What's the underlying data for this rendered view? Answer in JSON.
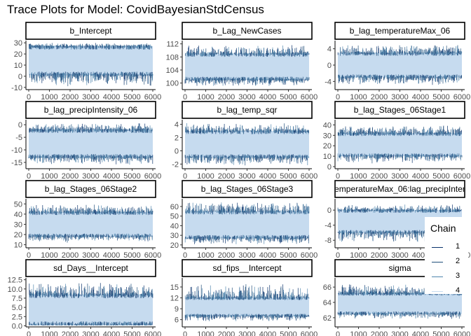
{
  "title": "Trace Plots for Model: CovidBayesianStdCensus",
  "legend": {
    "title": "Chain",
    "items": [
      {
        "label": "1",
        "color": "#08306b"
      },
      {
        "label": "2",
        "color": "#1f4e79"
      },
      {
        "label": "3",
        "color": "#4f85ad"
      },
      {
        "label": "4",
        "color": "#c6dbef"
      }
    ]
  },
  "chart_data": [
    {
      "type": "line",
      "title": "b_Intercept",
      "xlim": [
        0,
        6000
      ],
      "xticks": [
        0,
        1000,
        2000,
        3000,
        4000,
        5000,
        6000
      ],
      "xtick_labels": [
        "0",
        "1000",
        "2000",
        "3000",
        "4000",
        "5000",
        "6000"
      ],
      "ylim": [
        -12,
        32
      ],
      "yticks": [
        -10,
        0,
        10,
        20,
        30
      ],
      "ytick_labels": [
        "-10",
        "0",
        "10",
        "20",
        "30"
      ],
      "band": [
        1,
        27
      ],
      "extremes": [
        -10,
        30
      ]
    },
    {
      "type": "line",
      "title": "b_Lag_NewCases",
      "xlim": [
        0,
        6000
      ],
      "xticks": [
        0,
        1000,
        2000,
        3000,
        4000,
        5000,
        6000
      ],
      "xtick_labels": [
        "0",
        "1000",
        "2000",
        "3000",
        "4000",
        "5000",
        "6000"
      ],
      "ylim": [
        98,
        113
      ],
      "yticks": [
        100,
        104,
        108,
        112
      ],
      "ytick_labels": [
        "100",
        "104",
        "108",
        "112"
      ],
      "band": [
        101,
        109
      ],
      "extremes": [
        99,
        112
      ]
    },
    {
      "type": "line",
      "title": "b_lag_temperatureMax_06",
      "xlim": [
        0,
        6000
      ],
      "xticks": [
        0,
        1000,
        2000,
        3000,
        4000,
        5000,
        6000
      ],
      "xtick_labels": [
        "0",
        "1000",
        "2000",
        "3000",
        "4000",
        "5000",
        "6000"
      ],
      "ylim": [
        -6,
        6
      ],
      "yticks": [
        -4,
        0,
        4
      ],
      "ytick_labels": [
        "-4",
        "0",
        "4"
      ],
      "band": [
        -3,
        3
      ],
      "extremes": [
        -5,
        5
      ]
    },
    {
      "type": "line",
      "title": "b_lag_precipIntensity_06",
      "xlim": [
        0,
        6000
      ],
      "xticks": [
        0,
        1000,
        2000,
        3000,
        4000,
        5000,
        6000
      ],
      "xtick_labels": [
        "0",
        "1000",
        "2000",
        "3000",
        "4000",
        "5000",
        "6000"
      ],
      "ylim": [
        -17.5,
        2
      ],
      "yticks": [
        -15,
        -10,
        -5,
        0
      ],
      "ytick_labels": [
        "-15",
        "-10",
        "-5",
        "0"
      ],
      "band": [
        -13,
        -2
      ],
      "extremes": [
        -16,
        1
      ]
    },
    {
      "type": "line",
      "title": "b_lag_temp_sqr",
      "xlim": [
        0,
        6000
      ],
      "xticks": [
        0,
        1000,
        2000,
        3000,
        4000,
        5000,
        6000
      ],
      "xtick_labels": [
        "0",
        "1000",
        "2000",
        "3000",
        "4000",
        "5000",
        "6000"
      ],
      "ylim": [
        -2.7,
        4.7
      ],
      "yticks": [
        -2,
        0,
        2,
        4
      ],
      "ytick_labels": [
        "-2",
        "0",
        "2",
        "4"
      ],
      "band": [
        -1,
        3
      ],
      "extremes": [
        -2.3,
        4.2
      ]
    },
    {
      "type": "line",
      "title": "b_lag_Stages_06Stage1",
      "xlim": [
        0,
        6000
      ],
      "xticks": [
        0,
        1000,
        2000,
        3000,
        4000,
        5000,
        6000
      ],
      "xtick_labels": [
        "0",
        "1000",
        "2000",
        "3000",
        "4000",
        "5000",
        "6000"
      ],
      "ylim": [
        -2,
        45
      ],
      "yticks": [
        0,
        10,
        20,
        30,
        40
      ],
      "ytick_labels": [
        "0",
        "10",
        "20",
        "30",
        "40"
      ],
      "band": [
        10,
        32
      ],
      "extremes": [
        3,
        40
      ]
    },
    {
      "type": "line",
      "title": "b_lag_Stages_06Stage2",
      "xlim": [
        0,
        6000
      ],
      "xticks": [
        0,
        1000,
        2000,
        3000,
        4000,
        5000,
        6000
      ],
      "xtick_labels": [
        "0",
        "1000",
        "2000",
        "3000",
        "4000",
        "5000",
        "6000"
      ],
      "ylim": [
        7,
        55
      ],
      "yticks": [
        10,
        20,
        30,
        40,
        50
      ],
      "ytick_labels": [
        "10",
        "20",
        "30",
        "40",
        "50"
      ],
      "band": [
        18,
        42
      ],
      "extremes": [
        12,
        50
      ]
    },
    {
      "type": "line",
      "title": "b_lag_Stages_06Stage3",
      "xlim": [
        0,
        6000
      ],
      "xticks": [
        0,
        1000,
        2000,
        3000,
        4000,
        5000,
        6000
      ],
      "xtick_labels": [
        "0",
        "1000",
        "2000",
        "3000",
        "4000",
        "5000",
        "6000"
      ],
      "ylim": [
        17,
        68
      ],
      "yticks": [
        20,
        30,
        40,
        50,
        60
      ],
      "ytick_labels": [
        "20",
        "30",
        "40",
        "50",
        "60"
      ],
      "band": [
        27,
        55
      ],
      "extremes": [
        20,
        65
      ]
    },
    {
      "type": "line",
      "title": "emperatureMax_06:lag_precipInter",
      "xlim": [
        0,
        6000
      ],
      "xticks": [
        0,
        1000,
        2000,
        3000,
        4000,
        5000,
        6000
      ],
      "xtick_labels": [
        "0",
        "1000",
        "2000",
        "3000",
        "4000",
        "5000",
        "6000"
      ],
      "ylim": [
        -10,
        3
      ],
      "yticks": [
        -8,
        -4,
        0
      ],
      "ytick_labels": [
        "-8",
        "-4",
        "0"
      ],
      "band": [
        -6,
        0
      ],
      "extremes": [
        -9,
        1.5
      ]
    },
    {
      "type": "line",
      "title": "sd_Days__Intercept",
      "xlim": [
        0,
        6000
      ],
      "xticks": [
        0,
        1000,
        2000,
        3000,
        4000,
        5000,
        6000
      ],
      "xtick_labels": [
        "0",
        "1000",
        "2000",
        "3000",
        "4000",
        "5000",
        "6000"
      ],
      "ylim": [
        -0.3,
        13
      ],
      "yticks": [
        0,
        2.5,
        5,
        7.5,
        10,
        12.5
      ],
      "ytick_labels": [
        "0.0",
        "2.5",
        "5.0",
        "7.5",
        "10.0",
        "12.5"
      ],
      "band": [
        0.2,
        8.5
      ],
      "extremes": [
        0,
        12
      ]
    },
    {
      "type": "line",
      "title": "sd_fips__Intercept",
      "xlim": [
        0,
        6000
      ],
      "xticks": [
        0,
        1000,
        2000,
        3000,
        4000,
        5000,
        6000
      ],
      "xtick_labels": [
        "0",
        "1000",
        "2000",
        "3000",
        "4000",
        "5000",
        "6000"
      ],
      "ylim": [
        4,
        17.5
      ],
      "yticks": [
        6,
        9,
        12,
        15
      ],
      "ytick_labels": [
        "6",
        "9",
        "12",
        "15"
      ],
      "band": [
        7,
        12
      ],
      "extremes": [
        5.5,
        16
      ]
    },
    {
      "type": "line",
      "title": "sigma",
      "xlim": [
        0,
        6000
      ],
      "xticks": [
        0,
        1000,
        2000,
        3000,
        4000,
        5000,
        6000
      ],
      "xtick_labels": [
        "0",
        "1000",
        "2000",
        "3000",
        "4000",
        "5000",
        "6000"
      ],
      "ylim": [
        60.8,
        67.2
      ],
      "yticks": [
        62,
        64,
        66
      ],
      "ytick_labels": [
        "62",
        "64",
        "66"
      ],
      "band": [
        62.5,
        65.2
      ],
      "extremes": [
        61.8,
        66.5
      ]
    }
  ]
}
